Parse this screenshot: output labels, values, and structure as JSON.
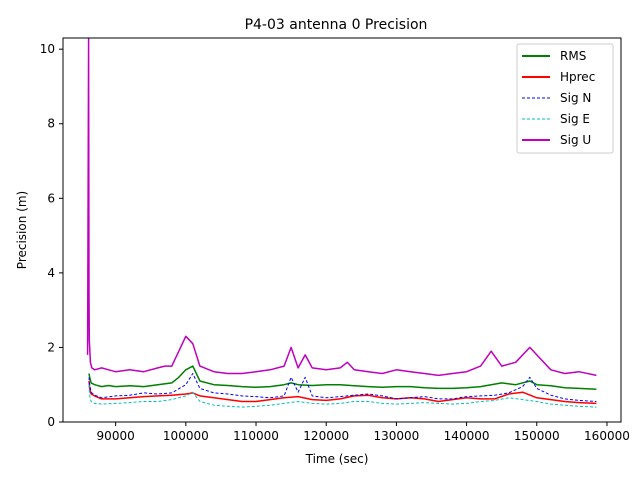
{
  "chart_data": {
    "type": "line",
    "title": "P4-03 antenna 0 Precision",
    "xlabel": "Time (sec)",
    "ylabel": "Precision (m)",
    "xlim": [
      82500,
      162000
    ],
    "ylim": [
      0,
      10.3
    ],
    "xticks": [
      90000,
      100000,
      110000,
      120000,
      130000,
      140000,
      150000,
      160000
    ],
    "xtick_labels": [
      "90000",
      "100000",
      "110000",
      "120000",
      "130000",
      "140000",
      "150000",
      "160000"
    ],
    "yticks": [
      0,
      2,
      4,
      6,
      8,
      10
    ],
    "ytick_labels": [
      "0",
      "2",
      "4",
      "6",
      "8",
      "10"
    ],
    "grid": false,
    "legend_position": "top-right",
    "series": [
      {
        "name": "RMS",
        "color": "#008000",
        "dash": "solid",
        "x": [
          86200,
          86300,
          86500,
          87000,
          88000,
          89000,
          90000,
          92000,
          94000,
          96000,
          98000,
          99000,
          100000,
          101000,
          102000,
          104000,
          106000,
          108000,
          110000,
          112000,
          114000,
          115000,
          116000,
          118000,
          120000,
          122000,
          124000,
          126000,
          128000,
          130000,
          132000,
          134000,
          136000,
          138000,
          140000,
          142000,
          143500,
          145000,
          147000,
          149000,
          150000,
          152000,
          154000,
          156000,
          158500
        ],
        "y": [
          1.3,
          1.2,
          1.05,
          1.0,
          0.95,
          0.98,
          0.95,
          0.97,
          0.95,
          1.0,
          1.05,
          1.2,
          1.4,
          1.5,
          1.1,
          1.0,
          0.98,
          0.95,
          0.93,
          0.95,
          1.0,
          1.05,
          1.0,
          0.98,
          1.0,
          1.0,
          0.97,
          0.95,
          0.93,
          0.95,
          0.95,
          0.92,
          0.9,
          0.9,
          0.92,
          0.95,
          1.0,
          1.05,
          1.0,
          1.1,
          1.0,
          0.97,
          0.92,
          0.9,
          0.88
        ]
      },
      {
        "name": "Hprec",
        "color": "#ff0000",
        "dash": "solid",
        "x": [
          86200,
          86300,
          86500,
          87000,
          88000,
          90000,
          92000,
          94000,
          96000,
          98000,
          100000,
          101000,
          102000,
          104000,
          106000,
          108000,
          110000,
          112000,
          114000,
          116000,
          118000,
          120000,
          122000,
          124000,
          126000,
          128000,
          130000,
          132000,
          134000,
          136000,
          138000,
          140000,
          142000,
          144000,
          146000,
          148000,
          150000,
          152000,
          154000,
          156000,
          158500
        ],
        "y": [
          1.1,
          0.9,
          0.75,
          0.7,
          0.62,
          0.62,
          0.65,
          0.68,
          0.7,
          0.72,
          0.75,
          0.78,
          0.7,
          0.65,
          0.6,
          0.55,
          0.55,
          0.6,
          0.65,
          0.68,
          0.6,
          0.58,
          0.62,
          0.7,
          0.72,
          0.65,
          0.62,
          0.65,
          0.62,
          0.55,
          0.6,
          0.65,
          0.62,
          0.62,
          0.75,
          0.8,
          0.65,
          0.6,
          0.55,
          0.52,
          0.5
        ]
      },
      {
        "name": "Sig N",
        "color": "#0000ff",
        "dash": "dashed",
        "x": [
          86200,
          86300,
          86500,
          87000,
          88000,
          90000,
          92000,
          94000,
          96000,
          98000,
          100000,
          101000,
          102000,
          104000,
          106000,
          108000,
          110000,
          112000,
          114000,
          115000,
          116000,
          117000,
          118000,
          120000,
          122000,
          124000,
          126000,
          128000,
          130000,
          132000,
          134000,
          136000,
          138000,
          140000,
          142000,
          144000,
          146000,
          148000,
          149000,
          150000,
          152000,
          154000,
          156000,
          158500
        ],
        "y": [
          1.2,
          1.0,
          0.8,
          0.72,
          0.65,
          0.7,
          0.72,
          0.78,
          0.75,
          0.78,
          1.0,
          1.3,
          0.9,
          0.78,
          0.75,
          0.7,
          0.68,
          0.65,
          0.7,
          1.2,
          0.8,
          1.2,
          0.7,
          0.65,
          0.68,
          0.72,
          0.75,
          0.7,
          0.62,
          0.65,
          0.68,
          0.62,
          0.62,
          0.68,
          0.7,
          0.72,
          0.78,
          0.95,
          1.2,
          0.9,
          0.72,
          0.62,
          0.58,
          0.55
        ]
      },
      {
        "name": "Sig E",
        "color": "#00bfbf",
        "dash": "dashed",
        "x": [
          86200,
          86300,
          86500,
          87000,
          88000,
          90000,
          92000,
          94000,
          96000,
          98000,
          100000,
          101000,
          102000,
          104000,
          106000,
          108000,
          110000,
          112000,
          114000,
          116000,
          118000,
          120000,
          122000,
          124000,
          126000,
          128000,
          130000,
          132000,
          134000,
          136000,
          138000,
          140000,
          142000,
          144000,
          146000,
          148000,
          150000,
          152000,
          154000,
          156000,
          158500
        ],
        "y": [
          1.0,
          0.7,
          0.55,
          0.5,
          0.48,
          0.5,
          0.52,
          0.55,
          0.55,
          0.6,
          0.7,
          0.8,
          0.55,
          0.45,
          0.42,
          0.4,
          0.42,
          0.45,
          0.5,
          0.55,
          0.5,
          0.48,
          0.5,
          0.55,
          0.55,
          0.5,
          0.48,
          0.5,
          0.52,
          0.5,
          0.48,
          0.5,
          0.55,
          0.58,
          0.65,
          0.6,
          0.55,
          0.48,
          0.45,
          0.42,
          0.4
        ]
      },
      {
        "name": "Sig U",
        "color": "#bf00bf",
        "dash": "solid",
        "x": [
          86000,
          86150,
          86200,
          86250,
          86400,
          86600,
          87000,
          88000,
          89000,
          90000,
          92000,
          94000,
          96000,
          97000,
          98000,
          99000,
          100000,
          101000,
          102000,
          104000,
          106000,
          108000,
          110000,
          112000,
          114000,
          115000,
          116000,
          117000,
          118000,
          120000,
          122000,
          123000,
          124000,
          126000,
          128000,
          130000,
          132000,
          134000,
          136000,
          138000,
          140000,
          142000,
          143500,
          145000,
          147000,
          149000,
          150000,
          152000,
          154000,
          156000,
          158500
        ],
        "y": [
          1.8,
          10.3,
          3.5,
          2.2,
          1.6,
          1.45,
          1.4,
          1.45,
          1.4,
          1.35,
          1.4,
          1.35,
          1.45,
          1.5,
          1.5,
          1.9,
          2.3,
          2.1,
          1.5,
          1.35,
          1.3,
          1.3,
          1.35,
          1.4,
          1.5,
          2.0,
          1.45,
          1.8,
          1.45,
          1.4,
          1.45,
          1.6,
          1.4,
          1.35,
          1.3,
          1.4,
          1.35,
          1.3,
          1.25,
          1.3,
          1.35,
          1.5,
          1.9,
          1.5,
          1.6,
          2.0,
          1.8,
          1.4,
          1.3,
          1.35,
          1.25
        ]
      }
    ]
  }
}
